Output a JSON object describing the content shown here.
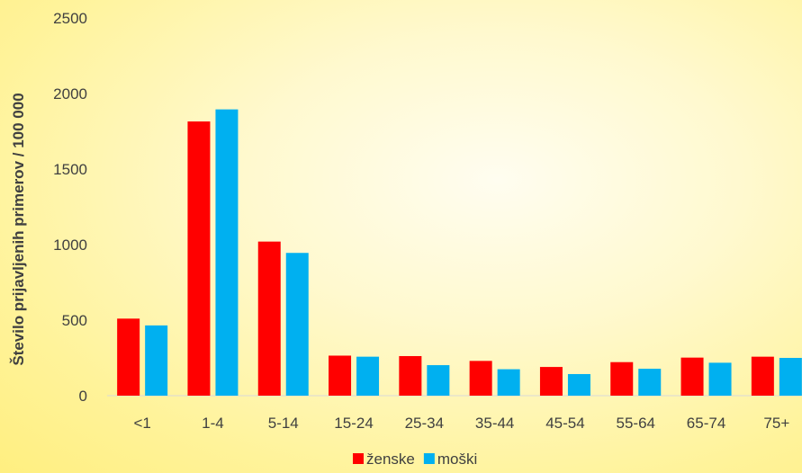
{
  "chart_data": {
    "type": "bar",
    "categories": [
      "<1",
      "1-4",
      "5-14",
      "15-24",
      "25-34",
      "35-44",
      "45-54",
      "55-64",
      "65-74",
      "75+"
    ],
    "series": [
      {
        "name": "ženske",
        "color": "#ff0000",
        "values": [
          510,
          1815,
          1020,
          265,
          262,
          230,
          190,
          222,
          252,
          258
        ]
      },
      {
        "name": "moški",
        "color": "#00b0f0",
        "values": [
          465,
          1895,
          945,
          258,
          202,
          175,
          143,
          178,
          218,
          250
        ]
      }
    ],
    "title": "",
    "xlabel": "",
    "ylabel": "Število prijavljenih primerov / 100 000",
    "ylim": [
      0,
      2500
    ],
    "yticks": [
      "0",
      "500",
      "1000",
      "1500",
      "2000",
      "2500"
    ],
    "grid": false,
    "legend": "bottom"
  }
}
